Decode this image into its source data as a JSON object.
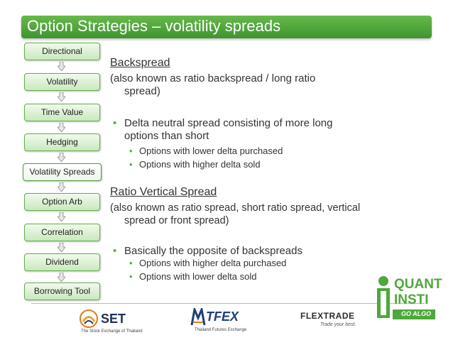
{
  "title": "Option Strategies – volatility spreads",
  "nav": {
    "items": [
      {
        "label": "Directional"
      },
      {
        "label": "Volatility"
      },
      {
        "label": "Time Value"
      },
      {
        "label": "Hedging"
      },
      {
        "label": "Volatility Spreads"
      },
      {
        "label": "Option Arb"
      },
      {
        "label": "Correlation"
      },
      {
        "label": "Dividend"
      },
      {
        "label": "Borrowing Tool"
      }
    ],
    "active": "Volatility Spreads"
  },
  "content": {
    "backspread": {
      "heading": "Backspread",
      "aka_line1": "(also known as ratio backspread / long ratio",
      "aka_line2": "spread)",
      "bullet_line1": "Delta neutral spread consisting of more long",
      "bullet_line2": "options than short",
      "sub1": "Options with lower delta purchased",
      "sub2": "Options with higher delta sold"
    },
    "ratio": {
      "heading": "Ratio Vertical Spread",
      "aka_line1": "(also known as ratio spread, short ratio spread, vertical",
      "aka_line2": "spread or front spread)",
      "bullet": "Basically the opposite of backspreads",
      "sub1": "Options with higher delta purchased",
      "sub2": "Options with lower delta sold"
    }
  },
  "logos": {
    "set": {
      "name": "SET",
      "tagline": "The Stock Exchange of Thailand"
    },
    "tfex": {
      "name": "TFEX",
      "tagline": "Thailand Futures Exchange"
    },
    "flextrade": {
      "name": "FLEXTRADE",
      "tagline": "Trade your best."
    },
    "quantinsti": {
      "line1": "QUANT",
      "line2": "INSTI",
      "tagline": "GO ALGO"
    }
  },
  "colors": {
    "accent": "#4ea83b",
    "title_bar": "#4fa43b",
    "nav_fill": "#d6eecb",
    "nav_border": "#62ad4d"
  }
}
